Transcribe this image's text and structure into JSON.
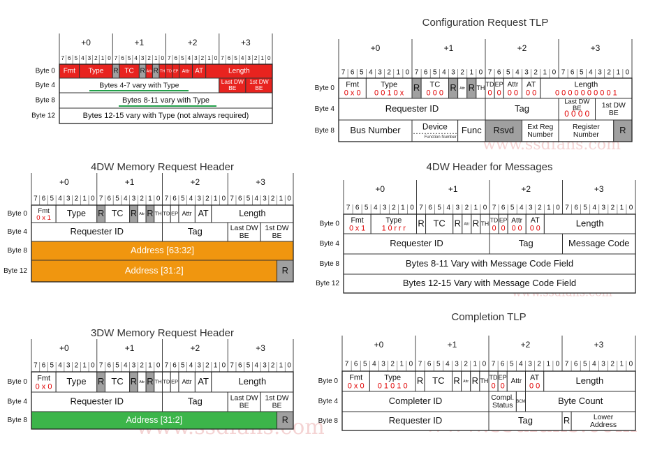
{
  "byte_offsets": [
    "+0",
    "+1",
    "+2",
    "+3"
  ],
  "bit_labels": [
    "7",
    "6",
    "5",
    "4",
    "3",
    "2",
    "1",
    "0"
  ],
  "watermark": "www.ssdfans.com",
  "panels": [
    {
      "rows": [
        {
          "label": "Byte 0",
          "color": "#e8231f",
          "fields": [
            {
              "name": "Fmt"
            },
            {
              "name": "Type"
            },
            {
              "name": "R",
              "color": "#a0a0a0"
            },
            {
              "name": "TC"
            },
            {
              "name": "R",
              "color": "#a0a0a0"
            },
            {
              "name": "Attr"
            },
            {
              "name": "R",
              "color": "#a0a0a0"
            },
            {
              "name": "TH"
            },
            {
              "name": "TD"
            },
            {
              "name": "EP"
            },
            {
              "name": "Attr"
            },
            {
              "name": "AT"
            },
            {
              "name": "Length"
            }
          ]
        },
        {
          "label": "Byte 4",
          "fields": [
            {
              "name": "Bytes 4-7 vary with Type"
            },
            {
              "name": "Last DW BE",
              "color": "#e8231f"
            },
            {
              "name": "1st DW BE",
              "color": "#e8231f"
            }
          ]
        },
        {
          "label": "Byte 8",
          "fields": [
            {
              "name": "Bytes 8-11 vary with Type"
            }
          ]
        },
        {
          "label": "Byte 12",
          "fields": [
            {
              "name": "Bytes 12-15 vary with Type (not always required)"
            }
          ]
        }
      ]
    },
    {
      "title": "Configuration Request TLP",
      "rows": [
        {
          "label": "Byte 0",
          "fields": [
            {
              "name": "Fmt",
              "value": "0 x 0"
            },
            {
              "name": "Type",
              "value": "0 0 1 0 x"
            },
            {
              "name": "R",
              "color": "#a0a0a0"
            },
            {
              "name": "TC",
              "value": "0 0 0"
            },
            {
              "name": "R",
              "color": "#a0a0a0"
            },
            {
              "name": "Attr"
            },
            {
              "name": "R",
              "color": "#a0a0a0"
            },
            {
              "name": "TH"
            },
            {
              "name": "TD",
              "value": "0"
            },
            {
              "name": "EP",
              "value": "0"
            },
            {
              "name": "Attr",
              "value": "0 0"
            },
            {
              "name": "AT",
              "value": "0 0"
            },
            {
              "name": "Length",
              "value": "0 0 0 0 0 0 0 0 0 1"
            }
          ]
        },
        {
          "label": "Byte 4",
          "fields": [
            {
              "name": "Requester ID"
            },
            {
              "name": "Tag"
            },
            {
              "name": "Last DW BE",
              "value": "0 0 0 0"
            },
            {
              "name": "1st DW BE"
            }
          ]
        },
        {
          "label": "Byte 8",
          "fields": [
            {
              "name": "Bus Number"
            },
            {
              "name": "Device",
              "note": "Function Number with ARI"
            },
            {
              "name": "Func"
            },
            {
              "name": "Rsvd",
              "color": "#a0a0a0"
            },
            {
              "name": "Ext Reg Number"
            },
            {
              "name": "Register Number"
            },
            {
              "name": "R",
              "color": "#a0a0a0"
            }
          ]
        }
      ]
    },
    {
      "title": "4DW Memory Request Header",
      "rows": [
        {
          "label": "Byte 0",
          "fields": [
            {
              "name": "Fmt",
              "value": "0 x 1"
            },
            {
              "name": "Type"
            },
            {
              "name": "R",
              "color": "#a0a0a0"
            },
            {
              "name": "TC"
            },
            {
              "name": "R",
              "color": "#a0a0a0"
            },
            {
              "name": "Attr"
            },
            {
              "name": "R",
              "color": "#a0a0a0"
            },
            {
              "name": "TH"
            },
            {
              "name": "TD"
            },
            {
              "name": "EP"
            },
            {
              "name": "Attr"
            },
            {
              "name": "AT"
            },
            {
              "name": "Length"
            }
          ]
        },
        {
          "label": "Byte 4",
          "fields": [
            {
              "name": "Requester ID"
            },
            {
              "name": "Tag"
            },
            {
              "name": "Last DW BE"
            },
            {
              "name": "1st DW BE"
            }
          ]
        },
        {
          "label": "Byte 8",
          "fields": [
            {
              "name": "Address [63:32]",
              "color": "#f0960f"
            }
          ]
        },
        {
          "label": "Byte 12",
          "fields": [
            {
              "name": "Address [31:2]",
              "color": "#f0960f"
            },
            {
              "name": "R",
              "color": "#a0a0a0"
            }
          ]
        }
      ]
    },
    {
      "title": "4DW Header for Messages",
      "rows": [
        {
          "label": "Byte 0",
          "fields": [
            {
              "name": "Fmt",
              "value": "0 x 1"
            },
            {
              "name": "Type",
              "value": "1 0 r r r"
            },
            {
              "name": "R"
            },
            {
              "name": "TC"
            },
            {
              "name": "R"
            },
            {
              "name": "Attr"
            },
            {
              "name": "R"
            },
            {
              "name": "TH"
            },
            {
              "name": "TD",
              "value": "0"
            },
            {
              "name": "EP",
              "value": "0"
            },
            {
              "name": "Attr",
              "value": "0 0"
            },
            {
              "name": "AT",
              "value": "0 0"
            },
            {
              "name": "Length"
            }
          ]
        },
        {
          "label": "Byte 4",
          "fields": [
            {
              "name": "Requester ID"
            },
            {
              "name": "Tag"
            },
            {
              "name": "Message Code"
            }
          ]
        },
        {
          "label": "Byte 8",
          "fields": [
            {
              "name": "Bytes 8-11 Vary with Message Code Field"
            }
          ]
        },
        {
          "label": "Byte 12",
          "fields": [
            {
              "name": "Bytes 12-15 Vary with Message Code Field"
            }
          ]
        }
      ]
    },
    {
      "title": "3DW Memory Request Header",
      "rows": [
        {
          "label": "Byte 0",
          "fields": [
            {
              "name": "Fmt",
              "value": "0 x 0"
            },
            {
              "name": "Type"
            },
            {
              "name": "R",
              "color": "#a0a0a0"
            },
            {
              "name": "TC"
            },
            {
              "name": "R",
              "color": "#a0a0a0"
            },
            {
              "name": "Attr"
            },
            {
              "name": "R",
              "color": "#a0a0a0"
            },
            {
              "name": "TH"
            },
            {
              "name": "TD"
            },
            {
              "name": "EP"
            },
            {
              "name": "Attr"
            },
            {
              "name": "AT"
            },
            {
              "name": "Length"
            }
          ]
        },
        {
          "label": "Byte 4",
          "fields": [
            {
              "name": "Requester ID"
            },
            {
              "name": "Tag"
            },
            {
              "name": "Last DW BE"
            },
            {
              "name": "1st DW BE"
            }
          ]
        },
        {
          "label": "Byte 8",
          "fields": [
            {
              "name": "Address [31:2]",
              "color": "#3cb54a"
            },
            {
              "name": "R",
              "color": "#a0a0a0"
            }
          ]
        }
      ]
    },
    {
      "title": "Completion TLP",
      "rows": [
        {
          "label": "Byte 0",
          "fields": [
            {
              "name": "Fmt",
              "value": "0 x 0"
            },
            {
              "name": "Type",
              "value": "0 1 0 1 0"
            },
            {
              "name": "R"
            },
            {
              "name": "TC"
            },
            {
              "name": "R"
            },
            {
              "name": "Attr"
            },
            {
              "name": "R"
            },
            {
              "name": "TH"
            },
            {
              "name": "TD",
              "value": "0"
            },
            {
              "name": "EP",
              "value": "0"
            },
            {
              "name": "Attr"
            },
            {
              "name": "AT",
              "value": "0 0"
            },
            {
              "name": "Length"
            }
          ]
        },
        {
          "label": "Byte 4",
          "fields": [
            {
              "name": "Completer ID"
            },
            {
              "name": "Compl. Status"
            },
            {
              "name": "BCM"
            },
            {
              "name": "Byte Count"
            }
          ]
        },
        {
          "label": "Byte 8",
          "fields": [
            {
              "name": "Requester ID"
            },
            {
              "name": "Tag"
            },
            {
              "name": "R"
            },
            {
              "name": "Lower Address"
            }
          ]
        }
      ]
    }
  ]
}
